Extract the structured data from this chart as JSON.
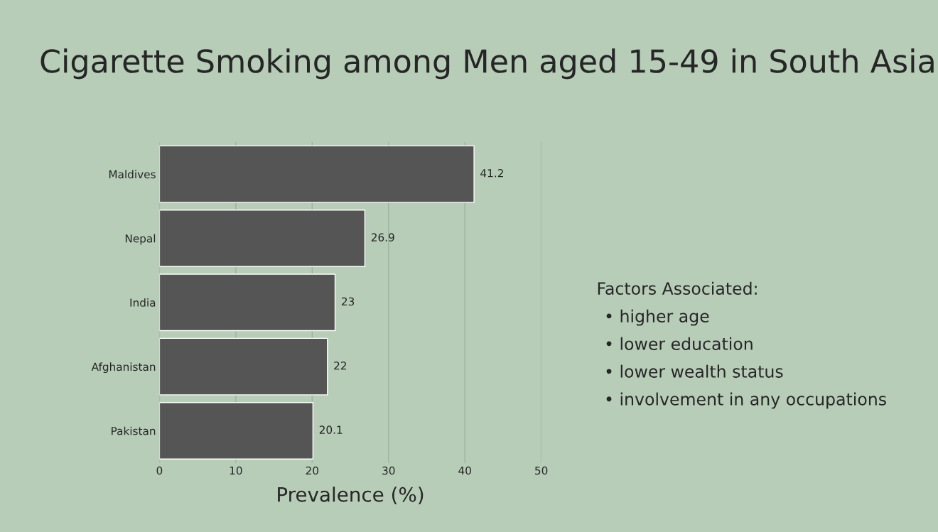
{
  "chart_data": {
    "type": "bar",
    "orientation": "horizontal",
    "title": "Cigarette Smoking among Men aged 15-49 in South Asia",
    "xlabel": "Prevalence (%)",
    "categories": [
      "Maldives",
      "Nepal",
      "India",
      "Afghanistan",
      "Pakistan"
    ],
    "values": [
      41.2,
      26.9,
      23,
      22,
      20.1
    ],
    "color": "#555555",
    "data_labels": true,
    "xlim": [
      0,
      50
    ],
    "xticks": [
      0,
      10,
      20,
      30,
      40,
      50
    ],
    "grid": "x",
    "annotations": [
      "Factors Associated:",
      "• higher age",
      "• lower education",
      "• lower wealth status",
      "• involvement in any occupations"
    ]
  }
}
